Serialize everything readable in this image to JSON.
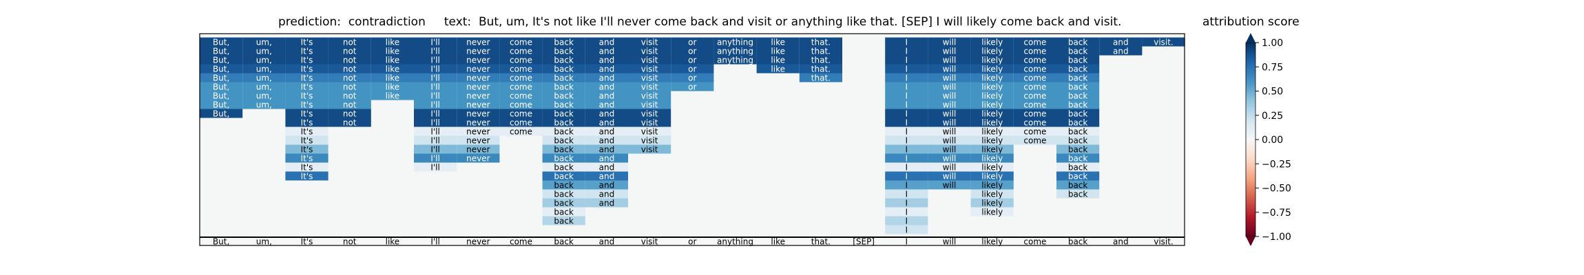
{
  "header": {
    "title": "prediction:  contradiction     text:  But, um, It's not like I'll never come back and visit or anything like that. [SEP] I will likely come back and visit.",
    "colorbar_title": "attribution score"
  },
  "colors": {
    "positive_max": "#08306b",
    "neutral": "#f7f7f7",
    "negative_max": "#67001f",
    "background": "#f5f7f7"
  },
  "chart_data": {
    "type": "heatmap",
    "title": "prediction:  contradiction     text:  But, um, It's not like I'll never come back and visit or anything like that. [SEP] I will likely come back and visit.",
    "colormap": "RdBu",
    "colorbar": {
      "label": "attribution score",
      "range": [
        -1.0,
        1.0
      ],
      "ticks": [
        "1.00",
        "0.75",
        "0.50",
        "0.25",
        "0.00",
        "−0.25",
        "−0.50",
        "−0.75",
        "−1.00"
      ],
      "tick_values": [
        1.0,
        0.75,
        0.5,
        0.25,
        0.0,
        -0.25,
        -0.5,
        -0.75,
        -1.0
      ]
    },
    "tokens": [
      "But,",
      "um,",
      "It's",
      "not",
      "like",
      "I'll",
      "never",
      "come",
      "back",
      "and",
      "visit",
      "or",
      "anything",
      "like",
      "that.",
      "[SEP]",
      "I",
      "will",
      "likely",
      "come",
      "back",
      "and",
      "visit."
    ],
    "rows": [
      [
        [
          0,
          0.9
        ],
        [
          1,
          0.9
        ],
        [
          2,
          0.9
        ],
        [
          3,
          0.9
        ],
        [
          4,
          0.9
        ],
        [
          5,
          0.9
        ],
        [
          6,
          0.9
        ],
        [
          7,
          0.9
        ],
        [
          8,
          0.9
        ],
        [
          9,
          0.9
        ],
        [
          10,
          0.9
        ],
        [
          11,
          0.9
        ],
        [
          12,
          0.9
        ],
        [
          13,
          0.9
        ],
        [
          14,
          0.9
        ],
        [
          16,
          0.9
        ],
        [
          17,
          0.9
        ],
        [
          18,
          0.9
        ],
        [
          19,
          0.9
        ],
        [
          20,
          0.9
        ],
        [
          21,
          0.9
        ],
        [
          22,
          0.9
        ]
      ],
      [
        [
          0,
          0.9
        ],
        [
          1,
          0.9
        ],
        [
          2,
          0.9
        ],
        [
          3,
          0.9
        ],
        [
          4,
          0.9
        ],
        [
          5,
          0.9
        ],
        [
          6,
          0.9
        ],
        [
          7,
          0.9
        ],
        [
          8,
          0.9
        ],
        [
          9,
          0.9
        ],
        [
          10,
          0.9
        ],
        [
          11,
          0.9
        ],
        [
          12,
          0.9
        ],
        [
          13,
          0.9
        ],
        [
          14,
          0.9
        ],
        [
          16,
          0.9
        ],
        [
          17,
          0.9
        ],
        [
          18,
          0.9
        ],
        [
          19,
          0.9
        ],
        [
          20,
          0.9
        ],
        [
          21,
          0.9
        ]
      ],
      [
        [
          0,
          0.9
        ],
        [
          1,
          0.9
        ],
        [
          2,
          0.9
        ],
        [
          3,
          0.9
        ],
        [
          4,
          0.9
        ],
        [
          5,
          0.9
        ],
        [
          6,
          0.9
        ],
        [
          7,
          0.9
        ],
        [
          8,
          0.9
        ],
        [
          9,
          0.9
        ],
        [
          10,
          0.9
        ],
        [
          11,
          0.9
        ],
        [
          12,
          0.9
        ],
        [
          13,
          0.9
        ],
        [
          14,
          0.9
        ],
        [
          16,
          0.9
        ],
        [
          17,
          0.9
        ],
        [
          18,
          0.9
        ],
        [
          19,
          0.9
        ],
        [
          20,
          0.9
        ]
      ],
      [
        [
          0,
          0.85
        ],
        [
          1,
          0.85
        ],
        [
          2,
          0.85
        ],
        [
          3,
          0.85
        ],
        [
          4,
          0.85
        ],
        [
          5,
          0.85
        ],
        [
          6,
          0.85
        ],
        [
          7,
          0.85
        ],
        [
          8,
          0.85
        ],
        [
          9,
          0.85
        ],
        [
          10,
          0.85
        ],
        [
          11,
          0.85
        ],
        [
          13,
          0.85
        ],
        [
          14,
          0.85
        ],
        [
          16,
          0.85
        ],
        [
          17,
          0.85
        ],
        [
          18,
          0.85
        ],
        [
          19,
          0.85
        ],
        [
          20,
          0.85
        ]
      ],
      [
        [
          0,
          0.7
        ],
        [
          1,
          0.7
        ],
        [
          2,
          0.7
        ],
        [
          3,
          0.7
        ],
        [
          4,
          0.7
        ],
        [
          5,
          0.7
        ],
        [
          6,
          0.7
        ],
        [
          7,
          0.7
        ],
        [
          8,
          0.7
        ],
        [
          9,
          0.7
        ],
        [
          10,
          0.7
        ],
        [
          11,
          0.7
        ],
        [
          14,
          0.7
        ],
        [
          16,
          0.7
        ],
        [
          17,
          0.7
        ],
        [
          18,
          0.7
        ],
        [
          19,
          0.7
        ],
        [
          20,
          0.7
        ]
      ],
      [
        [
          0,
          0.6
        ],
        [
          1,
          0.6
        ],
        [
          2,
          0.6
        ],
        [
          3,
          0.6
        ],
        [
          4,
          0.6
        ],
        [
          5,
          0.6
        ],
        [
          6,
          0.6
        ],
        [
          7,
          0.6
        ],
        [
          8,
          0.6
        ],
        [
          9,
          0.6
        ],
        [
          10,
          0.6
        ],
        [
          11,
          0.6
        ],
        [
          16,
          0.6
        ],
        [
          17,
          0.6
        ],
        [
          18,
          0.6
        ],
        [
          19,
          0.6
        ],
        [
          20,
          0.6
        ]
      ],
      [
        [
          0,
          0.6
        ],
        [
          1,
          0.6
        ],
        [
          2,
          0.6
        ],
        [
          3,
          0.6
        ],
        [
          4,
          0.6
        ],
        [
          5,
          0.6
        ],
        [
          6,
          0.6
        ],
        [
          7,
          0.6
        ],
        [
          8,
          0.6
        ],
        [
          9,
          0.6
        ],
        [
          10,
          0.6
        ],
        [
          16,
          0.6
        ],
        [
          17,
          0.6
        ],
        [
          18,
          0.6
        ],
        [
          19,
          0.6
        ],
        [
          20,
          0.6
        ]
      ],
      [
        [
          0,
          0.6
        ],
        [
          1,
          0.6
        ],
        [
          2,
          0.6
        ],
        [
          3,
          0.6
        ],
        [
          5,
          0.6
        ],
        [
          6,
          0.6
        ],
        [
          7,
          0.6
        ],
        [
          8,
          0.6
        ],
        [
          9,
          0.6
        ],
        [
          10,
          0.6
        ],
        [
          16,
          0.6
        ],
        [
          17,
          0.6
        ],
        [
          18,
          0.6
        ],
        [
          19,
          0.6
        ],
        [
          20,
          0.6
        ]
      ],
      [
        [
          0,
          0.9
        ],
        [
          2,
          0.9
        ],
        [
          3,
          0.9
        ],
        [
          5,
          0.9
        ],
        [
          6,
          0.9
        ],
        [
          7,
          0.9
        ],
        [
          8,
          0.9
        ],
        [
          9,
          0.9
        ],
        [
          10,
          0.9
        ],
        [
          16,
          0.9
        ],
        [
          17,
          0.9
        ],
        [
          18,
          0.9
        ],
        [
          19,
          0.9
        ],
        [
          20,
          0.9
        ]
      ],
      [
        [
          2,
          0.9
        ],
        [
          3,
          0.9
        ],
        [
          5,
          0.9
        ],
        [
          6,
          0.9
        ],
        [
          7,
          0.9
        ],
        [
          8,
          0.9
        ],
        [
          9,
          0.9
        ],
        [
          10,
          0.9
        ],
        [
          16,
          0.9
        ],
        [
          17,
          0.9
        ],
        [
          18,
          0.9
        ],
        [
          19,
          0.9
        ],
        [
          20,
          0.9
        ]
      ],
      [
        [
          2,
          0.1
        ],
        [
          5,
          0.1
        ],
        [
          6,
          0.1
        ],
        [
          7,
          0.1
        ],
        [
          8,
          0.1
        ],
        [
          9,
          0.1
        ],
        [
          10,
          0.1
        ],
        [
          16,
          0.1
        ],
        [
          17,
          0.1
        ],
        [
          18,
          0.1
        ],
        [
          19,
          0.1
        ],
        [
          20,
          0.1
        ]
      ],
      [
        [
          2,
          0.2
        ],
        [
          5,
          0.2
        ],
        [
          6,
          0.2
        ],
        [
          8,
          0.2
        ],
        [
          9,
          0.2
        ],
        [
          10,
          0.2
        ],
        [
          16,
          0.2
        ],
        [
          17,
          0.2
        ],
        [
          18,
          0.2
        ],
        [
          19,
          0.2
        ],
        [
          20,
          0.2
        ]
      ],
      [
        [
          2,
          0.45
        ],
        [
          5,
          0.45
        ],
        [
          6,
          0.45
        ],
        [
          8,
          0.45
        ],
        [
          9,
          0.45
        ],
        [
          10,
          0.45
        ],
        [
          16,
          0.45
        ],
        [
          17,
          0.45
        ],
        [
          18,
          0.45
        ],
        [
          20,
          0.45
        ]
      ],
      [
        [
          2,
          0.65
        ],
        [
          5,
          0.65
        ],
        [
          6,
          0.65
        ],
        [
          8,
          0.65
        ],
        [
          9,
          0.65
        ],
        [
          16,
          0.65
        ],
        [
          17,
          0.65
        ],
        [
          18,
          0.65
        ],
        [
          20,
          0.65
        ]
      ],
      [
        [
          2,
          0.1
        ],
        [
          5,
          0.1
        ],
        [
          8,
          0.1
        ],
        [
          9,
          0.1
        ],
        [
          16,
          0.1
        ],
        [
          17,
          0.1
        ],
        [
          18,
          0.1
        ],
        [
          20,
          0.1
        ]
      ],
      [
        [
          2,
          0.75
        ],
        [
          8,
          0.75
        ],
        [
          9,
          0.75
        ],
        [
          16,
          0.75
        ],
        [
          17,
          0.75
        ],
        [
          18,
          0.75
        ],
        [
          20,
          0.75
        ]
      ],
      [
        [
          8,
          0.55
        ],
        [
          9,
          0.55
        ],
        [
          16,
          0.55
        ],
        [
          17,
          0.55
        ],
        [
          18,
          0.55
        ],
        [
          20,
          0.55
        ]
      ],
      [
        [
          8,
          0.2
        ],
        [
          9,
          0.2
        ],
        [
          16,
          0.2
        ],
        [
          18,
          0.2
        ],
        [
          20,
          0.2
        ]
      ],
      [
        [
          8,
          0.35
        ],
        [
          9,
          0.35
        ],
        [
          16,
          0.35
        ],
        [
          18,
          0.35
        ]
      ],
      [
        [
          8,
          0.1
        ],
        [
          16,
          0.1
        ],
        [
          18,
          0.1
        ]
      ],
      [
        [
          8,
          0.3
        ],
        [
          16,
          0.3
        ]
      ],
      [
        [
          16,
          0.2
        ]
      ]
    ]
  }
}
